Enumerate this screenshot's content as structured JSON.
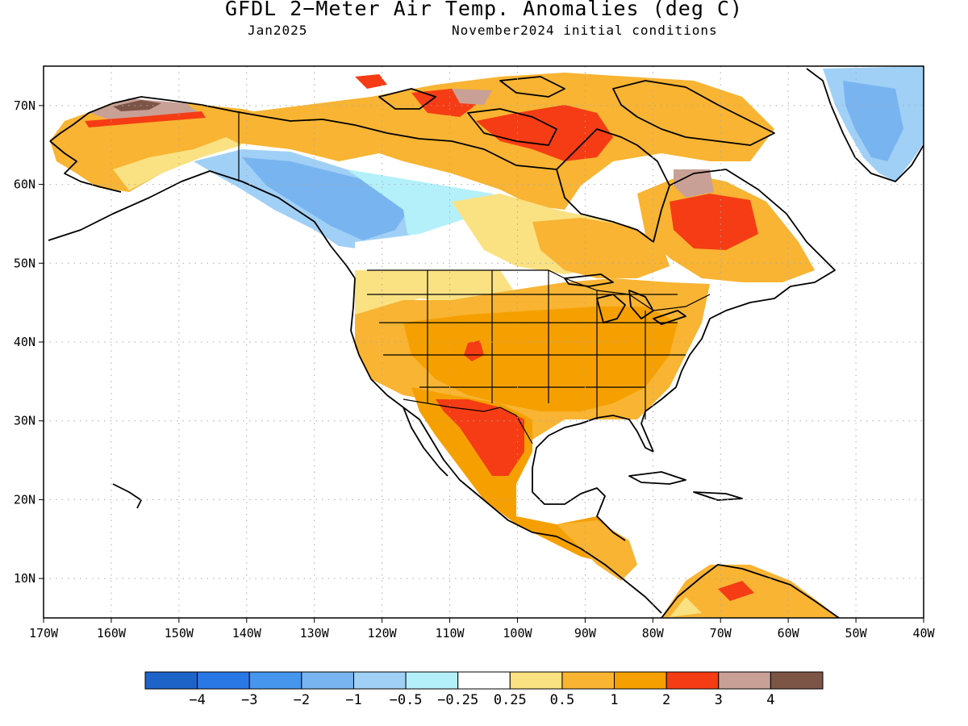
{
  "header": {
    "title": "GFDL 2−Meter Air Temp. Anomalies (deg C)",
    "valid_month": "Jan2025",
    "initial_conditions": "November2024 initial conditions"
  },
  "map": {
    "lon_range": [
      -170,
      -40
    ],
    "lat_range": [
      5,
      75
    ],
    "lon_ticks": [
      {
        "value": -170,
        "label": "170W"
      },
      {
        "value": -160,
        "label": "160W"
      },
      {
        "value": -150,
        "label": "150W"
      },
      {
        "value": -140,
        "label": "140W"
      },
      {
        "value": -130,
        "label": "130W"
      },
      {
        "value": -120,
        "label": "120W"
      },
      {
        "value": -110,
        "label": "110W"
      },
      {
        "value": -100,
        "label": "100W"
      },
      {
        "value": -90,
        "label": "90W"
      },
      {
        "value": -80,
        "label": "80W"
      },
      {
        "value": -70,
        "label": "70W"
      },
      {
        "value": -60,
        "label": "60W"
      },
      {
        "value": -50,
        "label": "50W"
      },
      {
        "value": -40,
        "label": "40W"
      }
    ],
    "lat_ticks": [
      {
        "value": 10,
        "label": "10N"
      },
      {
        "value": 20,
        "label": "20N"
      },
      {
        "value": 30,
        "label": "30N"
      },
      {
        "value": 40,
        "label": "40N"
      },
      {
        "value": 50,
        "label": "50N"
      },
      {
        "value": 60,
        "label": "60N"
      },
      {
        "value": 70,
        "label": "70N"
      }
    ],
    "grid": true
  },
  "colorbar": {
    "colors": [
      "#1e64c8",
      "#2a78e6",
      "#4696ee",
      "#78b4f0",
      "#a0d0f6",
      "#b4f0fa",
      "#ffffff",
      "#fae182",
      "#f8b432",
      "#f5a000",
      "#f53c14",
      "#c8a096",
      "#7d5546"
    ],
    "labels": [
      "−4",
      "−3",
      "−2",
      "−1",
      "−0.5",
      "−0.25",
      "0.25",
      "0.5",
      "1",
      "2",
      "3",
      "4"
    ]
  }
}
